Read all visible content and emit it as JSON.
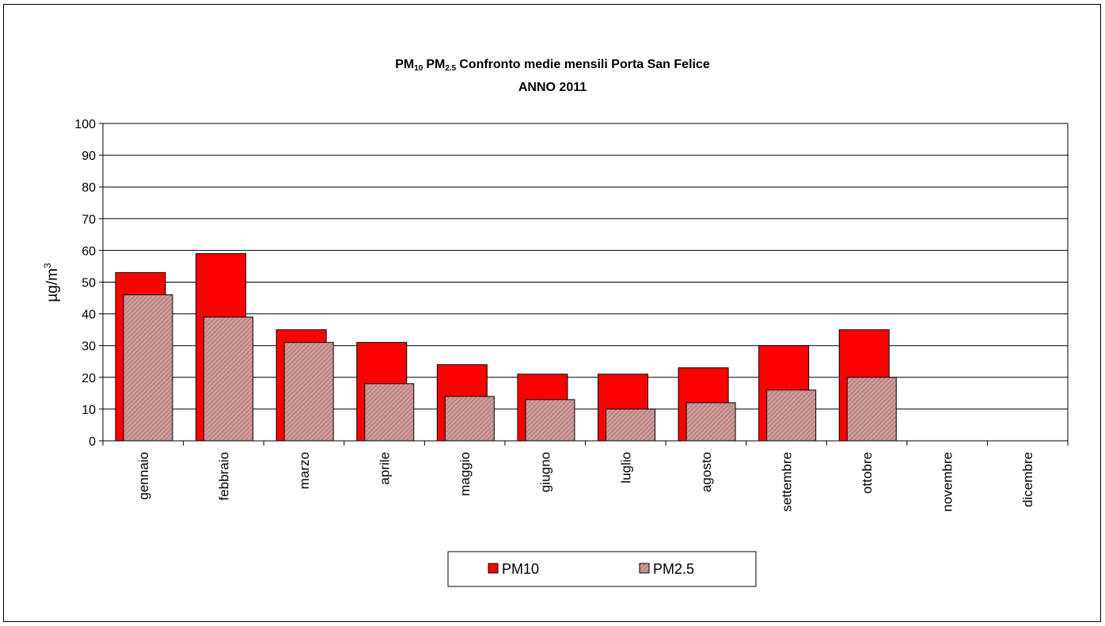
{
  "chart_data": {
    "type": "bar",
    "title_parts": {
      "pm10_main": "PM",
      "pm10_sub": "10",
      "pm25_main": "PM",
      "pm25_sub": "2.5",
      "rest": "Confronto medie mensili Porta San Felice"
    },
    "subtitle": "ANNO 2011",
    "ylabel_main": "µg/m",
    "ylabel_sup": "3",
    "ylim": [
      0,
      100
    ],
    "yticks": [
      0,
      10,
      20,
      30,
      40,
      50,
      60,
      70,
      80,
      90,
      100
    ],
    "grid": true,
    "categories": [
      "gennaio",
      "febbraio",
      "marzo",
      "aprile",
      "maggio",
      "giugno",
      "luglio",
      "agosto",
      "settembre",
      "ottobre",
      "novembre",
      "dicembre"
    ],
    "series": [
      {
        "name": "PM10",
        "color": "#ff0000",
        "values": [
          53,
          59,
          35,
          31,
          24,
          21,
          21,
          23,
          30,
          35,
          null,
          null
        ]
      },
      {
        "name": "PM2.5",
        "color": "#c78a8a",
        "pattern": "diagonal-hatch",
        "values": [
          46,
          39,
          31,
          18,
          14,
          13,
          10,
          12,
          16,
          20,
          null,
          null
        ]
      }
    ],
    "legend_position": "bottom"
  }
}
